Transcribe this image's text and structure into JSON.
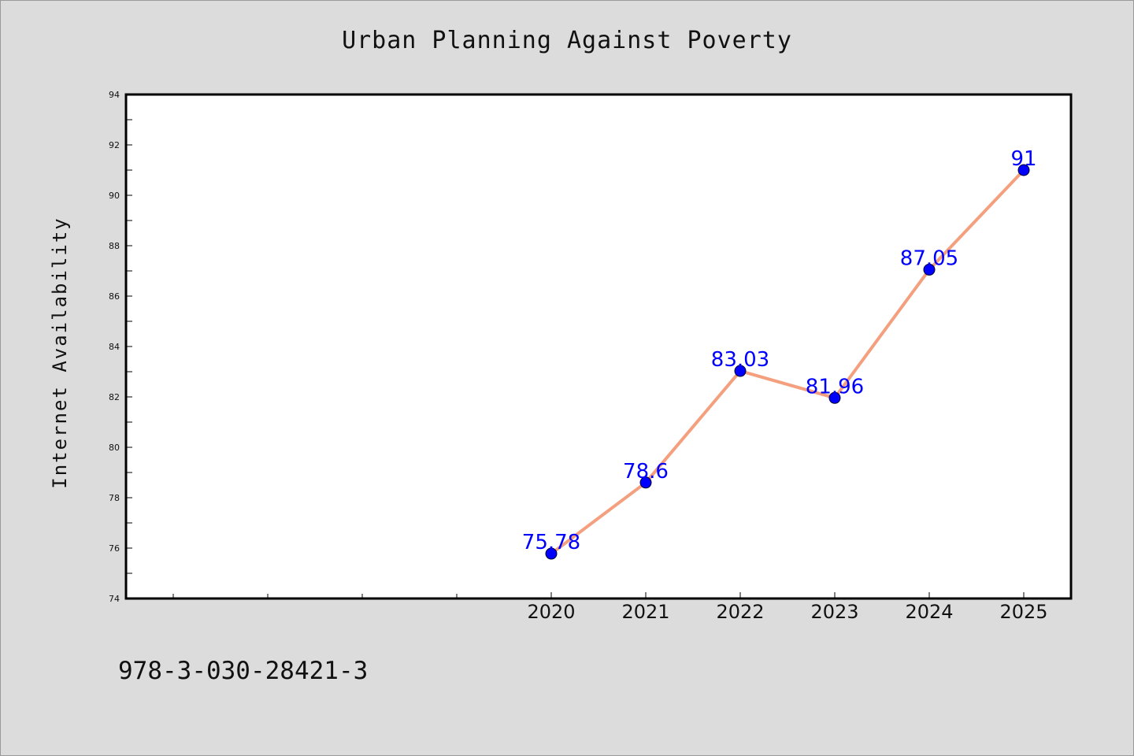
{
  "chart_data": {
    "type": "line",
    "title": "Urban Planning Against Poverty",
    "xlabel": "",
    "ylabel": "Internet Availability",
    "categories": [
      "2020",
      "2021",
      "2022",
      "2023",
      "2024",
      "2025"
    ],
    "values": [
      75.78,
      78.6,
      83.03,
      81.96,
      87.05,
      91
    ],
    "data_labels": [
      "75.78",
      "78.6",
      "83.03",
      "81.96",
      "87.05",
      "91"
    ],
    "ylim": [
      74,
      94
    ],
    "yticks": [
      74,
      76,
      78,
      80,
      82,
      84,
      86,
      88,
      90,
      92,
      94
    ],
    "x_domain": [
      2015.5,
      2025.5
    ],
    "x_minor_ticks": [
      2016,
      2017,
      2018,
      2019
    ],
    "grid": false,
    "legend": "none",
    "line_color": "#f4a07e",
    "marker_color": "#0000ff",
    "label_color": "#0000ff"
  },
  "footer": {
    "isbn": "978-3-030-28421-3"
  }
}
